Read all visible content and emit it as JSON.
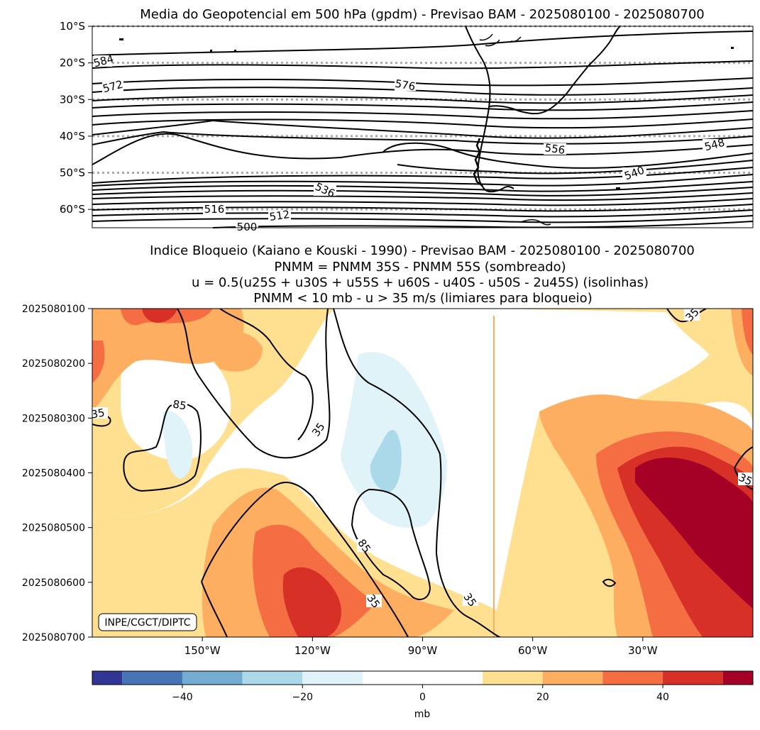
{
  "top_title": "Media do Geopotencial em 500 hPa (gpdm) - Previsao BAM - 2025080100 - 2025080700",
  "bottom_title_lines": [
    "Indice Bloqueio (Kaiano e Kouski - 1990) - Previsao BAM - 2025080100 - 2025080700",
    "PNMM = PNMM 35S - PNMM 55S (sombreado)",
    "u = 0.5(u25S + u30S + u55S + u60S - u40S - u50S - 2u45S) (isolinhas)",
    "PNMM < 10 mb - u > 35 m/s (limiares para bloqueio)"
  ],
  "credit": "INPE/CGCT/DIPTC",
  "colors": {
    "contour": "#000000",
    "lat_grid": "#aaaaaa",
    "colorbar": [
      "#313695",
      "#4575b4",
      "#74add1",
      "#abd9e9",
      "#e0f3f8",
      "#ffffff",
      "#ffffff",
      "#fee090",
      "#fdae61",
      "#f46d43",
      "#d73027",
      "#a50026"
    ]
  },
  "chart_data": [
    {
      "type": "contour_map",
      "title": "Media do Geopotencial em 500 hPa (gpdm) - Previsao BAM - 2025080100 - 2025080700",
      "variable": "geopotential height 500 hPa (gpdm)",
      "y_ticks": [
        "10°S",
        "20°S",
        "30°S",
        "40°S",
        "50°S",
        "60°S"
      ],
      "lat_range": [
        -65,
        -10
      ],
      "lat_grid_dotted": [
        -10,
        -20,
        -30,
        -40,
        -50,
        -60
      ],
      "contour_labels": [
        "584",
        "572",
        "576",
        "556",
        "548",
        "540",
        "536",
        "516",
        "512",
        "500"
      ]
    },
    {
      "type": "heatmap",
      "title": "Indice Bloqueio (Kaiano e Kouski - 1990) - Previsao BAM - 2025080100 - 2025080700",
      "shading": "PNMM = PNMM 35S - PNMM 55S",
      "isolines": "u = 0.5(u25S + u30S + u55S + u60S - u40S - u50S - 2u45S)",
      "thresholds": "PNMM < 10 mb - u > 35 m/s",
      "x_ticks": [
        "150°W",
        "120°W",
        "90°W",
        "60°W",
        "30°W"
      ],
      "y_ticks": [
        "2025080100",
        "2025080200",
        "2025080300",
        "2025080400",
        "2025080500",
        "2025080600",
        "2025080700"
      ],
      "contour_labels": [
        "35",
        "85",
        "35",
        "35",
        "85",
        "35",
        "35",
        "35"
      ]
    },
    {
      "type": "colorbar",
      "boundaries": [
        -55,
        -50,
        -40,
        -30,
        -20,
        -10,
        0,
        10,
        20,
        30,
        40,
        50,
        55
      ],
      "tick_values": [
        -40,
        -20,
        0,
        20,
        40
      ],
      "tick_labels": [
        "−40",
        "−20",
        "0",
        "20",
        "40"
      ],
      "label": "mb"
    }
  ]
}
